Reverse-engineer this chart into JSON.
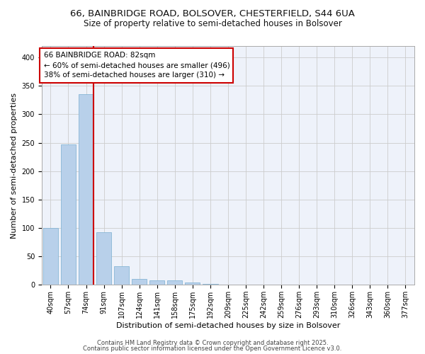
{
  "title_line1": "66, BAINBRIDGE ROAD, BOLSOVER, CHESTERFIELD, S44 6UA",
  "title_line2": "Size of property relative to semi-detached houses in Bolsover",
  "xlabel": "Distribution of semi-detached houses by size in Bolsover",
  "ylabel": "Number of semi-detached properties",
  "categories": [
    "40sqm",
    "57sqm",
    "74sqm",
    "91sqm",
    "107sqm",
    "124sqm",
    "141sqm",
    "158sqm",
    "175sqm",
    "192sqm",
    "209sqm",
    "225sqm",
    "242sqm",
    "259sqm",
    "276sqm",
    "293sqm",
    "310sqm",
    "326sqm",
    "343sqm",
    "360sqm",
    "377sqm"
  ],
  "values": [
    100,
    247,
    335,
    93,
    33,
    10,
    8,
    8,
    4,
    2,
    0,
    0,
    0,
    0,
    0,
    0,
    0,
    0,
    0,
    0,
    1
  ],
  "bar_color": "#b8d0ea",
  "bar_edge_color": "#7aaed0",
  "annotation_line1": "66 BAINBRIDGE ROAD: 82sqm",
  "annotation_line2": "← 60% of semi-detached houses are smaller (496)",
  "annotation_line3": "38% of semi-detached houses are larger (310) →",
  "vline_color": "#cc0000",
  "annotation_box_color": "#cc0000",
  "ylim": [
    0,
    420
  ],
  "yticks": [
    0,
    50,
    100,
    150,
    200,
    250,
    300,
    350,
    400
  ],
  "grid_color": "#cccccc",
  "bg_color": "#eef2fa",
  "footer_line1": "Contains HM Land Registry data © Crown copyright and database right 2025.",
  "footer_line2": "Contains public sector information licensed under the Open Government Licence v3.0.",
  "title_fontsize": 9.5,
  "subtitle_fontsize": 8.5,
  "ylabel_fontsize": 8,
  "xlabel_fontsize": 8,
  "tick_fontsize": 7,
  "annotation_fontsize": 7.5,
  "footer_fontsize": 6
}
